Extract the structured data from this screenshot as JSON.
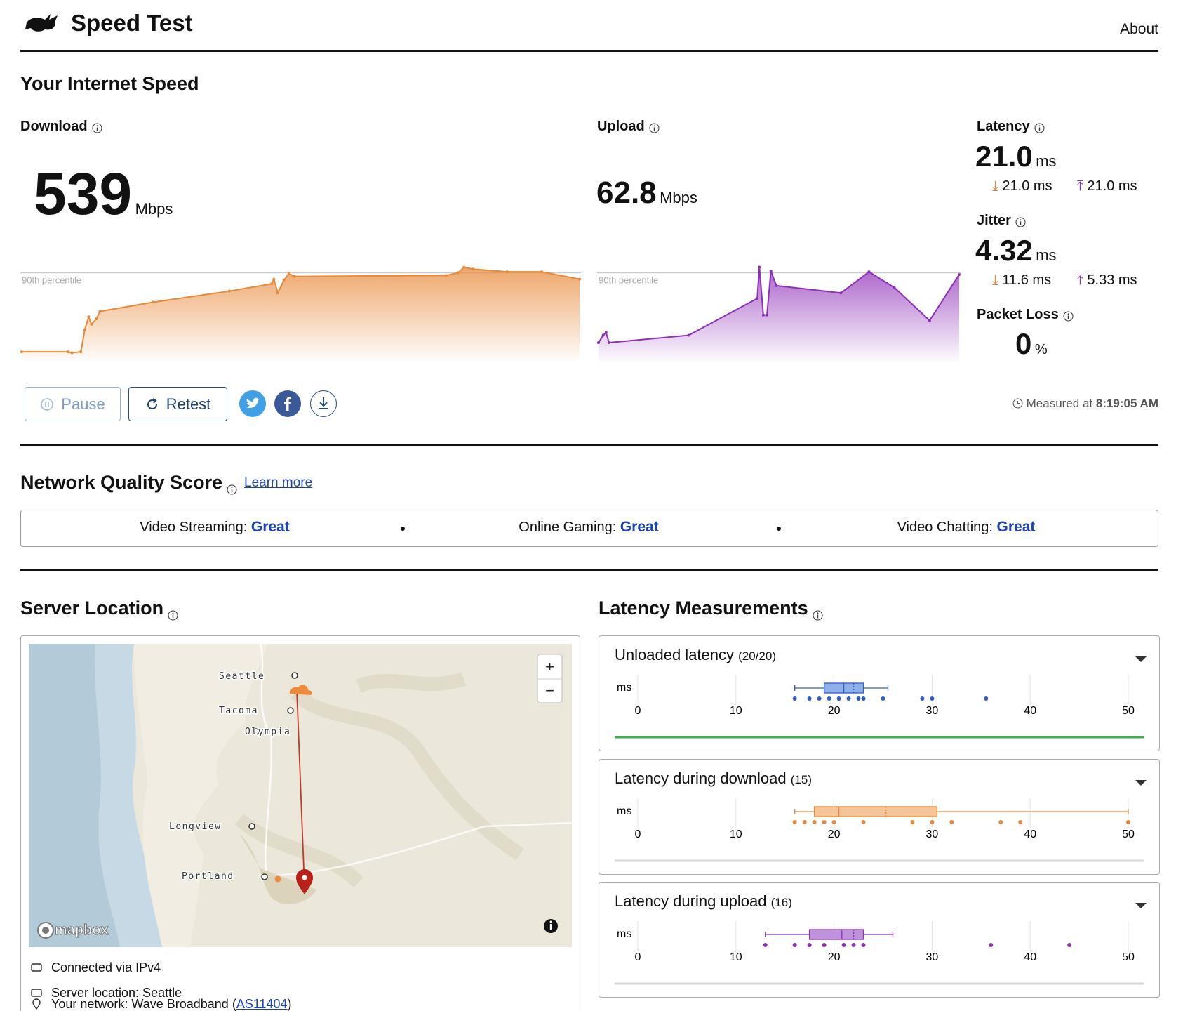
{
  "header": {
    "title": "Speed Test",
    "nav": "About"
  },
  "speed": {
    "title": "Your Internet Speed",
    "download": {
      "label": "Download",
      "value": "539",
      "unit": "Mbps"
    },
    "upload": {
      "label": "Upload",
      "value": "62.8",
      "unit": "Mbps"
    },
    "latency": {
      "label": "Latency",
      "value": "21.0",
      "unit": "ms",
      "down": "21.0 ms",
      "up": "21.0 ms"
    },
    "jitter": {
      "label": "Jitter",
      "value": "4.32",
      "unit": "ms",
      "down": "11.6 ms",
      "up": "5.33 ms"
    },
    "packet_loss": {
      "label": "Packet Loss",
      "value": "0",
      "unit": "%"
    },
    "download_chart": {
      "type": "area",
      "color": "#e8893a",
      "xlim": [
        0,
        100
      ],
      "ylim": [
        0,
        100
      ],
      "reference_line": {
        "label": "90th percentile",
        "value": 92
      },
      "x": [
        0,
        8.3,
        9,
        10.6,
        11.3,
        12,
        12.5,
        13.4,
        14,
        23.6,
        37.2,
        44.8,
        45.2,
        45.9,
        47,
        47.9,
        48.9,
        76.1,
        78.2,
        79.3,
        80.9,
        87,
        93.2,
        100
      ],
      "values": [
        6,
        6,
        5,
        6,
        30,
        44,
        36,
        42,
        50,
        60,
        72,
        80,
        85,
        70,
        84,
        91,
        88,
        89,
        92,
        98,
        96,
        93,
        93,
        85
      ]
    },
    "upload_chart": {
      "type": "area",
      "color": "#8e2fb8",
      "xlim": [
        0,
        100
      ],
      "ylim": [
        0,
        100
      ],
      "reference_line": {
        "label": "90th percentile",
        "value": 92
      },
      "x": [
        0,
        1.3,
        2.1,
        2.9,
        25,
        44,
        44.6,
        45.7,
        46.7,
        47.8,
        49.3,
        67.2,
        75,
        82,
        91.8,
        100
      ],
      "values": [
        16,
        24,
        27,
        16,
        24,
        64,
        98,
        46,
        46,
        94,
        78,
        70,
        93,
        76,
        40,
        90
      ]
    },
    "buttons": {
      "pause": "Pause",
      "retest": "Retest"
    },
    "measured": {
      "label": "Measured at",
      "time": "8:19:05 AM"
    }
  },
  "quality": {
    "title": "Network Quality Score",
    "link": "Learn more",
    "items": [
      {
        "label": "Video Streaming:",
        "rating": "Great"
      },
      {
        "label": "Online Gaming:",
        "rating": "Great"
      },
      {
        "label": "Video Chatting:",
        "rating": "Great"
      }
    ]
  },
  "server": {
    "title": "Server Location",
    "map": {
      "cities": [
        "Seattle",
        "Tacoma",
        "Olympia",
        "Longview",
        "Portland"
      ],
      "attribution": "mapbox",
      "zoom_in": "+",
      "zoom_out": "−"
    },
    "details": [
      "Connected via IPv4",
      "Server location: Seattle"
    ],
    "network": {
      "label": "Your network: Wave Broadband (",
      "asn": "AS11404",
      "close": ")"
    }
  },
  "latency_measurements": {
    "title": "Latency Measurements",
    "unit": "ms",
    "xlim": [
      0,
      50
    ],
    "xticks": [
      0,
      10,
      20,
      30,
      40,
      50
    ],
    "panels": [
      {
        "title": "Unloaded latency",
        "count": "(20/20)",
        "color": "#2f5fc4",
        "fill": "#8fb0e8",
        "line_color": "#3cae4b",
        "box": {
          "min": 16,
          "q1": 19,
          "median": 21,
          "mean": 22,
          "q3": 23,
          "max": 25.5
        },
        "points": [
          16,
          17.5,
          18.5,
          19.5,
          20.5,
          21.5,
          22.5,
          23,
          25,
          29,
          30,
          35.5
        ]
      },
      {
        "title": "Latency during download",
        "count": "(15)",
        "color": "#e8893a",
        "fill": "#f5c596",
        "line_color": "#d6d6d6",
        "box": {
          "min": 16,
          "q1": 18,
          "median": 20.5,
          "mean": 25.3,
          "q3": 30.5,
          "max": 50
        },
        "points": [
          16,
          17,
          18,
          19,
          20,
          23,
          28,
          30,
          32,
          37,
          39,
          50
        ]
      },
      {
        "title": "Latency during upload",
        "count": "(16)",
        "color": "#8e2fb8",
        "fill": "#bf93dc",
        "line_color": "#d6d6d6",
        "box": {
          "min": 13,
          "q1": 17.5,
          "median": 20.8,
          "mean": 22,
          "q3": 23,
          "max": 26
        },
        "points": [
          13,
          16,
          17.5,
          19,
          21,
          22,
          23,
          36,
          44
        ]
      }
    ]
  }
}
